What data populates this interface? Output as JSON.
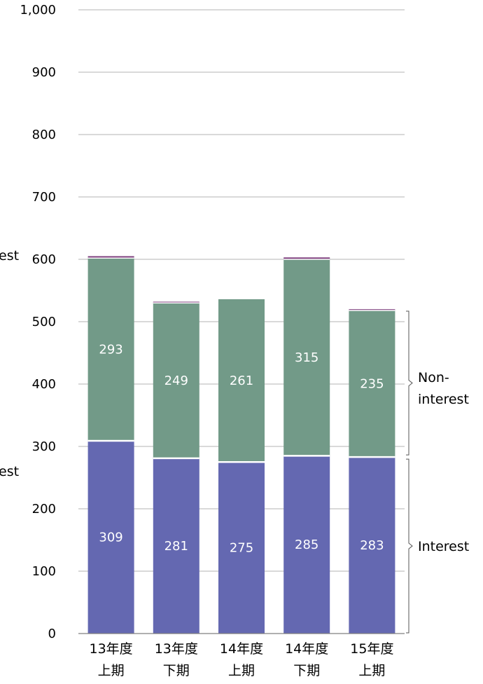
{
  "chart_data": {
    "type": "bar",
    "stacked": true,
    "categories": [
      [
        "13年度",
        "上期"
      ],
      [
        "13年度",
        "下期"
      ],
      [
        "14年度",
        "上期"
      ],
      [
        "14年度",
        "下期"
      ],
      [
        "15年度",
        "上期"
      ]
    ],
    "series": [
      {
        "name": "Interest",
        "values": [
          309,
          281,
          275,
          285,
          283
        ],
        "color": "#6468b1"
      },
      {
        "name": "Non-interest",
        "values": [
          293,
          249,
          261,
          315,
          235
        ],
        "color": "#729a88"
      }
    ],
    "top_slivers": [
      3,
      2,
      0,
      3,
      2
    ],
    "sliver_color": "#7a3a7a",
    "ylim": [
      0,
      1000
    ],
    "yticks": [
      "0",
      "100",
      "200",
      "300",
      "400",
      "500",
      "600",
      "700",
      "800",
      "900",
      "1,000"
    ],
    "grid": true,
    "side_labels": {
      "interest": "Interest",
      "noninterest_line1": "Non-",
      "noninterest_line2": "interest",
      "cut_left_upper": "est",
      "cut_left_lower": "est"
    }
  }
}
